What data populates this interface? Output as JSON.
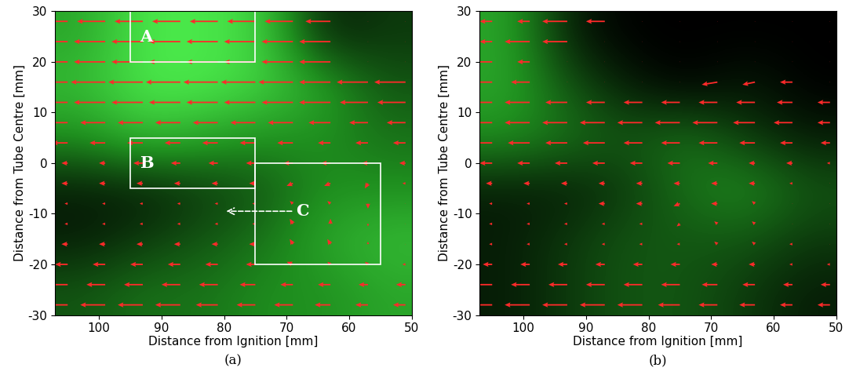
{
  "chart_data": [
    {
      "type": "quiver",
      "panel_label": "(a)",
      "xlabel": "Distance from Ignition [mm]",
      "ylabel": "Distance from Tube Centre [mm]",
      "xlim": [
        107,
        50
      ],
      "ylim": [
        -30,
        30
      ],
      "xticks": [
        100,
        90,
        80,
        70,
        60,
        50
      ],
      "yticks": [
        -30,
        -20,
        -10,
        0,
        10,
        20,
        30
      ],
      "color": "#ff2a2a",
      "x": [
        105,
        99,
        93,
        87,
        81,
        75,
        69,
        63,
        57,
        51
      ],
      "y": [
        -28,
        -24,
        -20,
        -16,
        -12,
        -8,
        -4,
        0,
        4,
        8,
        12,
        16,
        20,
        24,
        28
      ],
      "u": [
        [
          4,
          4,
          4,
          4,
          3.5,
          3,
          3,
          2.5,
          2,
          2
        ],
        [
          3,
          3,
          3,
          3,
          3,
          2.5,
          2,
          2,
          1.5,
          1.5
        ],
        [
          2,
          2,
          2,
          2,
          2,
          1.5,
          1,
          0.5,
          0.5,
          0.5
        ],
        [
          1,
          1,
          1,
          1,
          1,
          1,
          0.5,
          0.5,
          0,
          0
        ],
        [
          0.5,
          0.5,
          0.5,
          0.5,
          0.5,
          0.5,
          0.5,
          0,
          0,
          0
        ],
        [
          0.5,
          0.5,
          0.5,
          0.5,
          0.5,
          0.5,
          0.5,
          0.5,
          0,
          0
        ],
        [
          1,
          1,
          1,
          1,
          1,
          1,
          1,
          1,
          0.5,
          0.5
        ],
        [
          1,
          1,
          1.5,
          1.5,
          1.5,
          1.5,
          1.5,
          1.5,
          1,
          1
        ],
        [
          2.5,
          2.5,
          2.5,
          2.5,
          2.5,
          2.5,
          2.5,
          2,
          2,
          2
        ],
        [
          4,
          4,
          4,
          4,
          4,
          4,
          4,
          3.5,
          3,
          3
        ],
        [
          5,
          5,
          5,
          5,
          5,
          5,
          5,
          5,
          4.5,
          4.5
        ],
        [
          5.5,
          5.5,
          5.5,
          5.5,
          5.5,
          5.5,
          5.5,
          5,
          5,
          5
        ],
        [
          5,
          5,
          5,
          5,
          5,
          5,
          5,
          5,
          0,
          0
        ],
        [
          5,
          5,
          5,
          5,
          5,
          5,
          5,
          5,
          0,
          0
        ],
        [
          4.5,
          4.5,
          4.5,
          4.5,
          4.5,
          4.5,
          4.5,
          4,
          0,
          0
        ]
      ],
      "v": [
        [
          0,
          0,
          0,
          0,
          0,
          0,
          0,
          0,
          0,
          0
        ],
        [
          0,
          0,
          0,
          0,
          0,
          0,
          0,
          0,
          0,
          0
        ],
        [
          0,
          0,
          0,
          0,
          0,
          0,
          0.5,
          0.5,
          0.5,
          0
        ],
        [
          0,
          0,
          0,
          0,
          0,
          0,
          1,
          1,
          0.5,
          0
        ],
        [
          0,
          0,
          0,
          0,
          0,
          0,
          1,
          1,
          -0.5,
          0
        ],
        [
          0,
          0,
          0,
          0,
          0,
          0,
          0.5,
          0.5,
          -1,
          0
        ],
        [
          0,
          0,
          0,
          0,
          0,
          0,
          -0.5,
          -0.5,
          -1,
          0
        ],
        [
          0,
          0,
          0,
          0,
          0,
          0,
          0,
          0,
          0,
          0
        ],
        [
          0,
          0,
          0,
          0,
          0,
          0,
          0,
          0,
          0,
          0
        ],
        [
          0,
          0,
          0,
          0,
          0,
          0,
          0,
          0,
          0,
          0
        ],
        [
          0,
          0,
          0,
          0,
          0,
          0,
          0,
          0,
          0,
          0
        ],
        [
          0,
          0,
          0,
          0,
          0,
          0,
          0,
          0,
          0,
          0
        ],
        [
          0,
          0,
          0,
          0,
          0,
          0,
          0,
          0,
          0,
          0
        ],
        [
          0,
          0,
          0,
          0,
          0,
          0,
          0,
          0,
          0,
          0
        ],
        [
          0,
          0,
          0,
          0,
          0,
          0,
          0,
          0,
          0,
          0
        ]
      ],
      "intensity": [
        [
          0.6,
          0.9,
          0.9,
          0.8,
          0.1,
          0.2
        ],
        [
          0.7,
          0.9,
          0.9,
          0.8,
          0.6,
          0.3
        ],
        [
          0.5,
          0.7,
          0.6,
          0.5,
          0.5,
          0.4
        ],
        [
          0.1,
          0.1,
          0.2,
          0.3,
          0.5,
          0.5
        ],
        [
          0.1,
          0.2,
          0.3,
          0.4,
          0.6,
          0.7
        ],
        [
          0.3,
          0.4,
          0.4,
          0.5,
          0.5,
          0.6
        ]
      ],
      "boxes": [
        {
          "label": "A",
          "x": [
            95,
            75
          ],
          "y": [
            20,
            30
          ],
          "label_xy": [
            93.5,
            25
          ]
        },
        {
          "label": "B",
          "x": [
            95,
            75
          ],
          "y": [
            -5,
            5
          ],
          "label_xy": [
            93.5,
            0
          ]
        },
        {
          "label": "C",
          "x": [
            75,
            55
          ],
          "y": [
            -20,
            0
          ],
          "label_xy": [
            68.5,
            -9.5
          ],
          "arrow_to": [
            80,
            -9.5
          ]
        }
      ]
    },
    {
      "type": "quiver",
      "panel_label": "(b)",
      "xlabel": "Distance from Ignition [mm]",
      "ylabel": "Distance from Tube Centre [mm]",
      "xlim": [
        107,
        50
      ],
      "ylim": [
        -30,
        30
      ],
      "xticks": [
        100,
        90,
        80,
        70,
        60,
        50
      ],
      "yticks": [
        -30,
        -20,
        -10,
        0,
        10,
        20,
        30
      ],
      "color": "#ff2a2a",
      "x": [
        105,
        99,
        93,
        87,
        81,
        75,
        69,
        63,
        57,
        51
      ],
      "y": [
        -28,
        -24,
        -20,
        -16,
        -12,
        -8,
        -4,
        0,
        4,
        8,
        12,
        16,
        20,
        24,
        28
      ],
      "u": [
        [
          4,
          4,
          4,
          4,
          4,
          3.5,
          3,
          2.5,
          2,
          2
        ],
        [
          3,
          3,
          3,
          3,
          3,
          3,
          2.5,
          2,
          1.5,
          1.5
        ],
        [
          1.5,
          1.5,
          1.5,
          1.5,
          1.5,
          1.5,
          1,
          1,
          0.5,
          0.5
        ],
        [
          0.5,
          0.5,
          0.5,
          0.5,
          0.5,
          0.5,
          0.5,
          0.5,
          0.5,
          0
        ],
        [
          0.5,
          0.5,
          0.5,
          0.5,
          0.5,
          0.5,
          0.5,
          0.5,
          0,
          0
        ],
        [
          0.5,
          0.5,
          0.5,
          1,
          1,
          1,
          1,
          0.5,
          0,
          0
        ],
        [
          1,
          1,
          1,
          1,
          1,
          1,
          1,
          1,
          0.5,
          0
        ],
        [
          2,
          2,
          2,
          2,
          2,
          2,
          1.5,
          1,
          1,
          0.5
        ],
        [
          3.5,
          3.5,
          3.5,
          3.5,
          3,
          3,
          3,
          2.5,
          2,
          1.5
        ],
        [
          4,
          4,
          4,
          4,
          4,
          4,
          4,
          3.5,
          3,
          2
        ],
        [
          4,
          4,
          3.5,
          3,
          3,
          3,
          3,
          3,
          2.5,
          2
        ],
        [
          4,
          3,
          0,
          0,
          0,
          0,
          2.5,
          2,
          2,
          0
        ],
        [
          3,
          2,
          0,
          0,
          0,
          0,
          0,
          0,
          0,
          0
        ],
        [
          2,
          4,
          4,
          0,
          0,
          0,
          0,
          0,
          0,
          0
        ],
        [
          2,
          2,
          4,
          3,
          0,
          0,
          0,
          0,
          0,
          0
        ]
      ],
      "v": [
        [
          0,
          0,
          0,
          0,
          0,
          0,
          0,
          0,
          0,
          0
        ],
        [
          0,
          0,
          0,
          0,
          0,
          0,
          0,
          0,
          0,
          0
        ],
        [
          0,
          0,
          0,
          0,
          0,
          0,
          0,
          0,
          0,
          0
        ],
        [
          0,
          0,
          0,
          0,
          0,
          0,
          0.5,
          0.5,
          0,
          0
        ],
        [
          0,
          0,
          0,
          0,
          0,
          -0.5,
          0.5,
          0.5,
          0,
          0
        ],
        [
          0,
          0,
          0,
          0,
          0,
          -0.5,
          0,
          0.5,
          0,
          0
        ],
        [
          0,
          0,
          0,
          0,
          0,
          0,
          0,
          0,
          0,
          0
        ],
        [
          0,
          0,
          0,
          0,
          0,
          0,
          0,
          0,
          0,
          0
        ],
        [
          0,
          0,
          0,
          0,
          0,
          0,
          0,
          0,
          0,
          0
        ],
        [
          0,
          0,
          0,
          0,
          0,
          0,
          0,
          0,
          0,
          0
        ],
        [
          0,
          0,
          0,
          0,
          0,
          0,
          0,
          0,
          0,
          0
        ],
        [
          0,
          0,
          0,
          0,
          0,
          0,
          -0.5,
          -0.5,
          0,
          0
        ],
        [
          0,
          0,
          0,
          0,
          0,
          0,
          0,
          0,
          0,
          0
        ],
        [
          0,
          0,
          0,
          0,
          0,
          0,
          0,
          0,
          0,
          0
        ],
        [
          0,
          0,
          0,
          0,
          0,
          0,
          0,
          0,
          0,
          0
        ]
      ],
      "intensity": [
        [
          0.6,
          0.1,
          0.0,
          0.0,
          0.0,
          0.0
        ],
        [
          0.6,
          0.3,
          0.1,
          0.0,
          0.1,
          0.0
        ],
        [
          0.5,
          0.4,
          0.3,
          0.4,
          0.2,
          0.1
        ],
        [
          0.1,
          0.1,
          0.2,
          0.4,
          0.5,
          0.3
        ],
        [
          0.1,
          0.2,
          0.3,
          0.3,
          0.3,
          0.2
        ],
        [
          0.1,
          0.2,
          0.3,
          0.3,
          0.2,
          0.1
        ]
      ],
      "boxes": []
    }
  ]
}
